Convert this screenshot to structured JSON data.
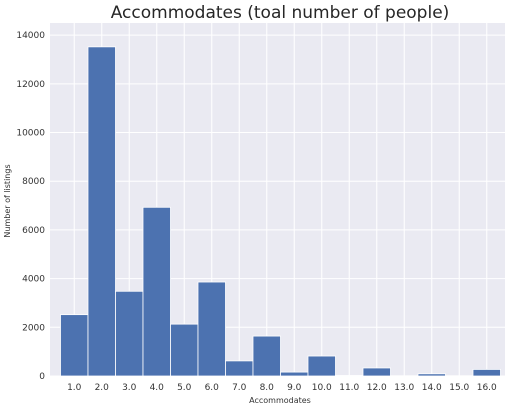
{
  "chart_data": {
    "type": "bar",
    "title": "Accommodates (toal number of people)",
    "xlabel": "Accommodates",
    "ylabel": "Number of listings",
    "categories": [
      "1.0",
      "2.0",
      "3.0",
      "4.0",
      "5.0",
      "6.0",
      "7.0",
      "8.0",
      "9.0",
      "10.0",
      "11.0",
      "12.0",
      "13.0",
      "14.0",
      "15.0",
      "16.0"
    ],
    "values": [
      2520,
      13520,
      3480,
      6930,
      2130,
      3860,
      620,
      1640,
      160,
      820,
      20,
      330,
      10,
      90,
      10,
      270
    ],
    "ylim": [
      0,
      14500
    ],
    "yticks": [
      0,
      2000,
      4000,
      6000,
      8000,
      10000,
      12000,
      14000
    ],
    "grid": true,
    "legend": "none",
    "colors": {
      "bar": "#4c72b0",
      "plot_bg": "#eaeaf2",
      "grid": "#ffffff"
    }
  }
}
